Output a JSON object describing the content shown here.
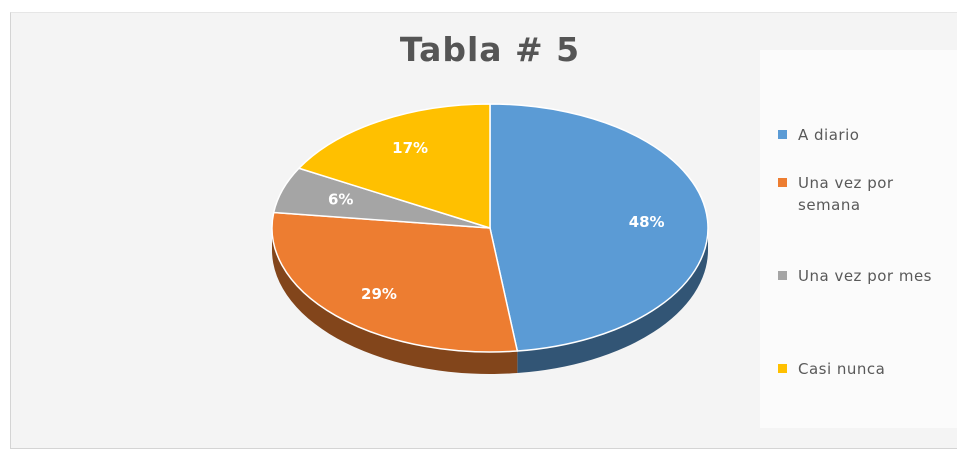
{
  "chart_data": {
    "type": "pie",
    "title": "Tabla # 5",
    "categories": [
      "A diario",
      "Una vez por semana",
      "Una vez por mes",
      "Casi nunca"
    ],
    "values": [
      48,
      29,
      6,
      17
    ],
    "value_labels": [
      "48%",
      "29%",
      "6%",
      "17%"
    ],
    "colors": [
      "#5b9bd5",
      "#ed7d31",
      "#a5a5a5",
      "#ffc000"
    ],
    "legend_position": "right",
    "three_d": true
  },
  "legend": {
    "items": [
      {
        "label": "A diario",
        "color": "#5b9bd5"
      },
      {
        "label": "Una vez por\nsemana",
        "color": "#ed7d31"
      },
      {
        "label": "Una vez por mes",
        "color": "#a5a5a5"
      },
      {
        "label": "Casi nunca",
        "color": "#ffc000"
      }
    ]
  }
}
